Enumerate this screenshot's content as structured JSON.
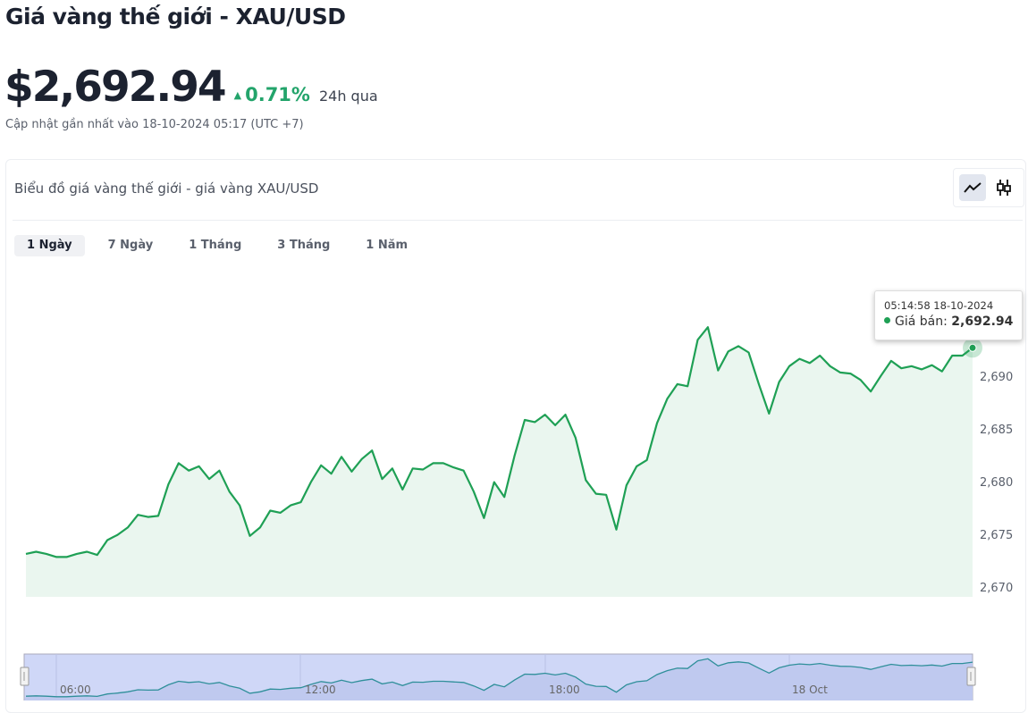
{
  "header": {
    "title": "Giá vàng thế giới - XAU/USD",
    "price": "$2,692.94",
    "change": "0.71%",
    "change_period": "24h qua",
    "updated": "Cập nhật gần nhất vào 18-10-2024 05:17 (UTC +7)",
    "change_color": "#23a46b"
  },
  "card": {
    "title": "Biểu đồ giá vàng thế giới - giá vàng XAU/USD",
    "toggle": [
      {
        "icon": "line-chart-icon",
        "active": true
      },
      {
        "icon": "candlestick-icon",
        "active": false
      }
    ],
    "tabs": [
      {
        "label": "1 Ngày",
        "active": true
      },
      {
        "label": "7 Ngày"
      },
      {
        "label": "1 Tháng"
      },
      {
        "label": "3 Tháng"
      },
      {
        "label": "1 Năm"
      }
    ]
  },
  "tooltip": {
    "time": "05:14:58 18-10-2024",
    "label": "Giá bán:",
    "value": "2,692.94"
  },
  "chart_data": {
    "type": "area",
    "line_color": "#1fa055",
    "fill_color": "#eaf6ef",
    "yticks": [
      "2,670",
      "2,675",
      "2,680",
      "2,685",
      "2,690"
    ],
    "ytick_values": [
      2670,
      2675,
      2680,
      2685,
      2690
    ],
    "navigator_labels": [
      "06:00",
      "12:00",
      "18:00",
      "18 Oct"
    ],
    "series": [
      {
        "values": [
          2673.4,
          2673.6,
          2673.4,
          2673.1,
          2673.1,
          2673.4,
          2673.6,
          2673.3,
          2674.7,
          2675.2,
          2675.9,
          2677.1,
          2676.9,
          2677.0,
          2680.0,
          2682.0,
          2681.3,
          2681.7,
          2680.5,
          2681.3,
          2679.3,
          2678.0,
          2675.1,
          2675.9,
          2677.5,
          2677.3,
          2678.0,
          2678.3,
          2680.2,
          2681.8,
          2681.0,
          2682.6,
          2681.2,
          2682.4,
          2683.2,
          2680.5,
          2681.5,
          2679.5,
          2681.5,
          2681.4,
          2682.0,
          2682.0,
          2681.6,
          2681.3,
          2679.3,
          2676.8,
          2680.2,
          2678.8,
          2682.7,
          2686.1,
          2685.9,
          2686.6,
          2685.6,
          2686.6,
          2684.4,
          2680.4,
          2679.1,
          2679.0,
          2675.7,
          2679.9,
          2681.7,
          2682.3,
          2685.8,
          2688.1,
          2689.5,
          2689.3,
          2693.7,
          2694.9,
          2690.8,
          2692.6,
          2693.1,
          2692.5,
          2689.5,
          2686.7,
          2689.7,
          2691.2,
          2691.9,
          2691.5,
          2692.2,
          2691.2,
          2690.6,
          2690.5,
          2689.9,
          2688.8,
          2690.3,
          2691.7,
          2691.0,
          2691.2,
          2690.9,
          2691.3,
          2690.7,
          2692.2,
          2692.2,
          2692.94
        ]
      }
    ]
  }
}
